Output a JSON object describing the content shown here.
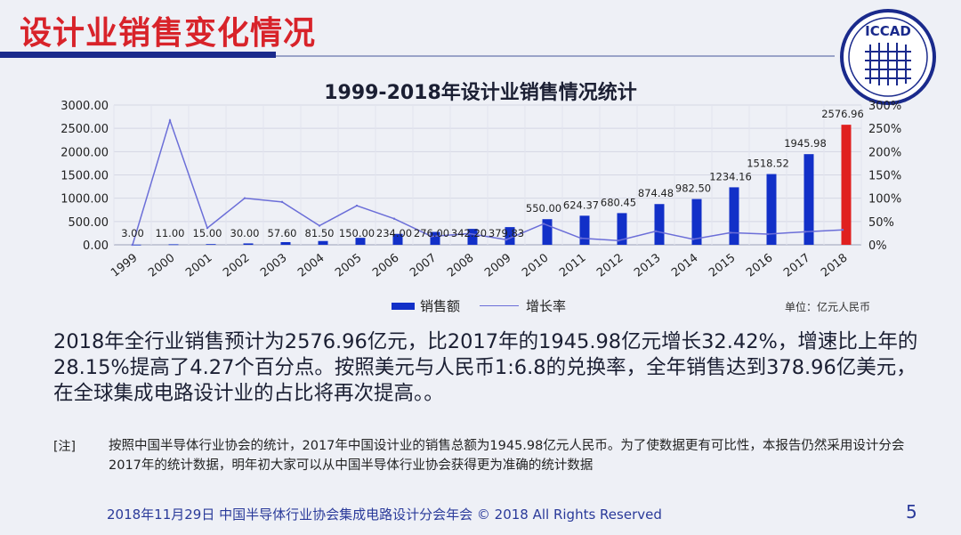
{
  "slide": {
    "title": "设计业销售变化情况",
    "logo_text": "ICCAD",
    "body": "2018年全行业销售预计为2576.96亿元，比2017年的1945.98亿元增长32.42%，增速比上年的28.15%提高了4.27个百分点。按照美元与人民币1:6.8的兑换率，全年销售达到378.96亿美元，在全球集成电路设计业的占比将再次提高。。",
    "note_label": "[注]",
    "note": "按照中国半导体行业协会的统计，2017年中国设计业的销售总额为1945.98亿元人民币。为了使数据更有可比性，本报告仍然采用设计分会2017年的统计数据，明年初大家可以从中国半导体行业协会获得更为准确的统计数据",
    "footer": "2018年11月29日  中国半导体行业协会集成电路设计分会年会 © 2018 All Rights Reserved",
    "page_number": "5"
  },
  "colors": {
    "title_red": "#d8232a",
    "bar_blue": "#1230c8",
    "bar_highlight": "#e0201f",
    "line": "#6b6ed8",
    "rule": "#1a2a8c"
  },
  "chart_data": {
    "type": "bar",
    "title": "1999-2018年设计业销售情况统计",
    "unit": "单位：亿元人民币",
    "categories": [
      "1999",
      "2000",
      "2001",
      "2002",
      "2003",
      "2004",
      "2005",
      "2006",
      "2007",
      "2008",
      "2009",
      "2010",
      "2011",
      "2012",
      "2013",
      "2014",
      "2015",
      "2016",
      "2017",
      "2018"
    ],
    "series": [
      {
        "name": "销售额",
        "type": "bar",
        "axis": "left",
        "values": [
          3.0,
          11.0,
          15.0,
          30.0,
          57.6,
          81.5,
          150.0,
          234.0,
          276.0,
          342.2,
          379.83,
          550.0,
          624.37,
          680.45,
          874.48,
          982.5,
          1234.16,
          1518.52,
          1945.98,
          2576.96
        ],
        "labels": [
          "3.00",
          "11.00",
          "15.00",
          "30.00",
          "57.60",
          "81.50",
          "150.00",
          "234.00",
          "276.00",
          "342.20",
          "379.83",
          "550.00",
          "624.37",
          "680.45",
          "874.48",
          "982.50",
          "1234.16",
          "1518.52",
          "1945.98",
          "2576.96"
        ],
        "highlight_index": 19
      },
      {
        "name": "增长率",
        "type": "line",
        "axis": "right",
        "values": [
          0,
          267,
          36,
          100,
          92,
          41,
          84,
          56,
          18,
          24,
          11,
          45,
          14,
          9,
          29,
          12,
          26,
          23,
          28,
          32
        ]
      }
    ],
    "y_left": {
      "min": 0,
      "max": 3000,
      "step": 500,
      "tick_labels": [
        "0.00",
        "500.00",
        "1000.00",
        "1500.00",
        "2000.00",
        "2500.00",
        "3000.00"
      ]
    },
    "y_right": {
      "min": 0,
      "max": 300,
      "step": 50,
      "tick_labels": [
        "0%",
        "50%",
        "100%",
        "150%",
        "200%",
        "250%",
        "300%"
      ]
    },
    "grid": true,
    "legend_placement": "bottom-center"
  }
}
